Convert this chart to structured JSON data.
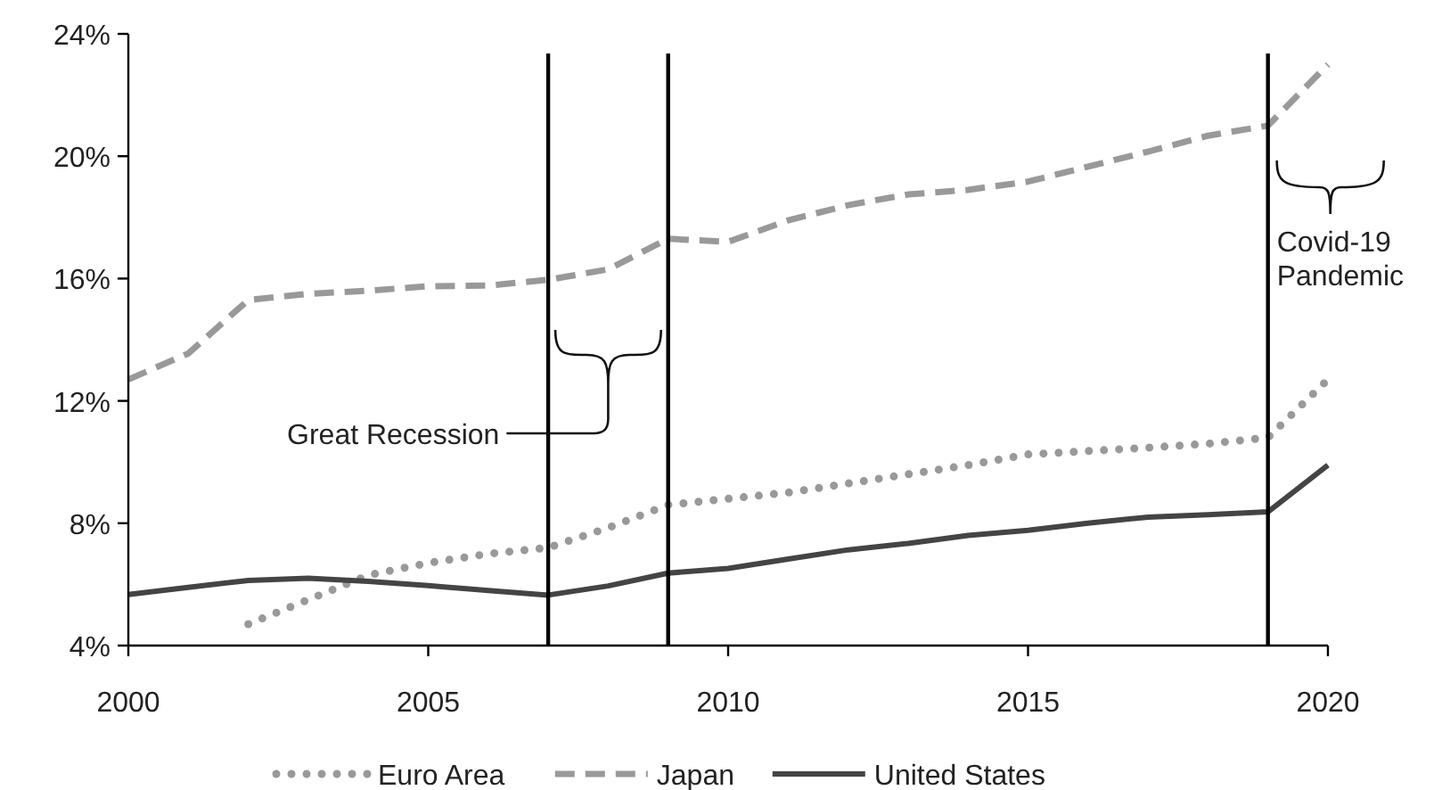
{
  "chart_data": {
    "type": "line",
    "x": [
      2000,
      2001,
      2002,
      2003,
      2004,
      2005,
      2006,
      2007,
      2008,
      2009,
      2010,
      2011,
      2012,
      2013,
      2014,
      2015,
      2016,
      2017,
      2018,
      2019,
      2020
    ],
    "series": [
      {
        "name": "Euro Area",
        "color": "#999999",
        "line_style": "dotted",
        "values": [
          null,
          null,
          4.7,
          5.5,
          6.3,
          6.7,
          7.0,
          7.2,
          7.85,
          8.6,
          8.8,
          9.0,
          9.3,
          9.6,
          9.9,
          10.25,
          10.36,
          10.47,
          10.6,
          10.8,
          12.7
        ]
      },
      {
        "name": "Japan",
        "color": "#999999",
        "line_style": "dashed",
        "values": [
          12.7,
          13.55,
          15.3,
          15.5,
          15.6,
          15.75,
          15.77,
          15.96,
          16.3,
          17.3,
          17.2,
          17.9,
          18.4,
          18.75,
          18.9,
          19.17,
          19.66,
          20.15,
          20.67,
          21.0,
          23.0
        ]
      },
      {
        "name": "United States",
        "color": "#444444",
        "line_style": "solid",
        "values": [
          5.67,
          5.9,
          6.13,
          6.2,
          6.1,
          5.96,
          5.8,
          5.65,
          5.95,
          6.37,
          6.52,
          6.83,
          7.13,
          7.34,
          7.6,
          7.77,
          8.0,
          8.2,
          8.28,
          8.37,
          9.9
        ]
      }
    ],
    "xlim": [
      2000,
      2020
    ],
    "xticks": [
      2000,
      2005,
      2010,
      2015,
      2020
    ],
    "ylim": [
      4,
      24
    ],
    "yticks": [
      {
        "value": 4,
        "label": "4%"
      },
      {
        "value": 8,
        "label": "8%"
      },
      {
        "value": 12,
        "label": "12%"
      },
      {
        "value": 16,
        "label": "16%"
      },
      {
        "value": 20,
        "label": "20%"
      },
      {
        "value": 24,
        "label": "24%"
      }
    ],
    "ref_lines": [
      {
        "axis": "x",
        "value": 2007,
        "color": "#000000",
        "label": "Great Recession"
      },
      {
        "axis": "x",
        "value": 2009,
        "color": "#000000"
      },
      {
        "axis": "x",
        "value": 2019,
        "color": "#000000",
        "label": "Covid-19\nPandemic"
      }
    ],
    "grid": false,
    "legend": "bottom"
  }
}
